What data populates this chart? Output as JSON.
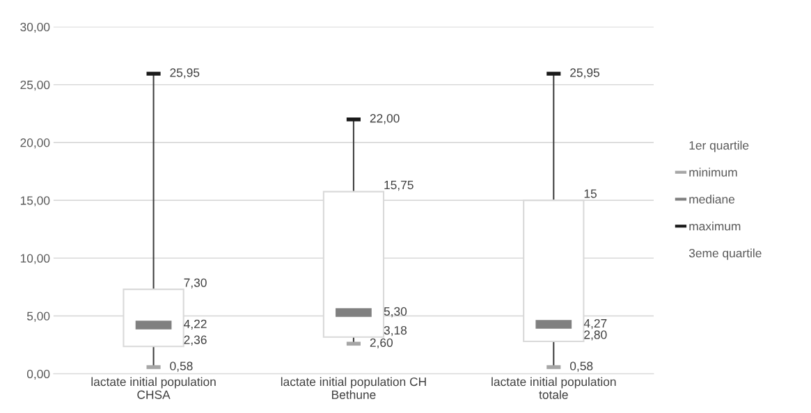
{
  "chart_data": {
    "type": "box",
    "categories": [
      "lactate initial population\nCHSA",
      "lactate initial population CH\nBethune",
      "lactate initial population\ntotale"
    ],
    "boxes": [
      {
        "low": 0.58,
        "q1": 2.36,
        "median": 4.22,
        "q3": 7.3,
        "high": 25.95
      },
      {
        "low": 2.6,
        "q1": 3.18,
        "median": 5.3,
        "q3": 15.75,
        "high": 22.0
      },
      {
        "low": 0.58,
        "q1": 2.8,
        "median": 4.27,
        "q3": 15,
        "high": 25.95
      }
    ],
    "value_labels": [
      [
        "0,58",
        "2,36",
        "4,22",
        "7,30",
        "25,95"
      ],
      [
        "2,60",
        "3,18",
        "5,30",
        "15,75",
        "22,00"
      ],
      [
        "0,58",
        "2,80",
        "4,27",
        "15",
        "25,95"
      ]
    ],
    "series": [
      {
        "name": "1er quartile",
        "color": null,
        "values": [
          null,
          null,
          null
        ]
      },
      {
        "name": "minimum",
        "color": "#a6a6a6",
        "values": [
          null,
          null,
          null
        ]
      },
      {
        "name": "mediane",
        "color": "#808080",
        "values": [
          null,
          null,
          null
        ]
      },
      {
        "name": "maximum",
        "color": "#1a1a1a",
        "values": [
          null,
          null,
          null
        ]
      },
      {
        "name": "3eme quartile",
        "color": null,
        "values": [
          null,
          null,
          null
        ]
      }
    ],
    "ylim": [
      0,
      30
    ],
    "yticks": [
      {
        "value": 0,
        "label": "0,00"
      },
      {
        "value": 5,
        "label": "5,00"
      },
      {
        "value": 10,
        "label": "10,00"
      },
      {
        "value": 15,
        "label": "15,00"
      },
      {
        "value": 20,
        "label": "20,00"
      },
      {
        "value": 25,
        "label": "25,00"
      },
      {
        "value": 30,
        "label": "30,00"
      }
    ],
    "grid": "y",
    "legend": "right"
  }
}
